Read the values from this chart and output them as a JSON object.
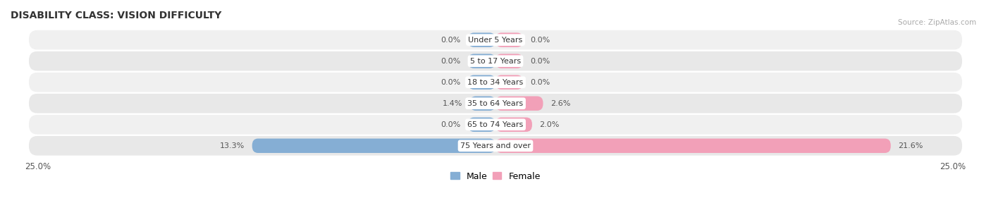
{
  "title": "DISABILITY CLASS: VISION DIFFICULTY",
  "source": "Source: ZipAtlas.com",
  "categories": [
    "Under 5 Years",
    "5 to 17 Years",
    "18 to 34 Years",
    "35 to 64 Years",
    "65 to 74 Years",
    "75 Years and over"
  ],
  "male_values": [
    0.0,
    0.0,
    0.0,
    1.4,
    0.0,
    13.3
  ],
  "female_values": [
    0.0,
    0.0,
    0.0,
    2.6,
    2.0,
    21.6
  ],
  "male_color": "#85aed4",
  "female_color": "#f2a0b8",
  "x_min": -25.0,
  "x_max": 25.0,
  "legend_male": "Male",
  "legend_female": "Female",
  "label_color": "#555555",
  "title_color": "#333333",
  "default_stub": 1.5,
  "row_colors": [
    "#f0f0f0",
    "#e8e8e8",
    "#f0f0f0",
    "#e8e8e8",
    "#f0f0f0",
    "#e8e8e8"
  ]
}
